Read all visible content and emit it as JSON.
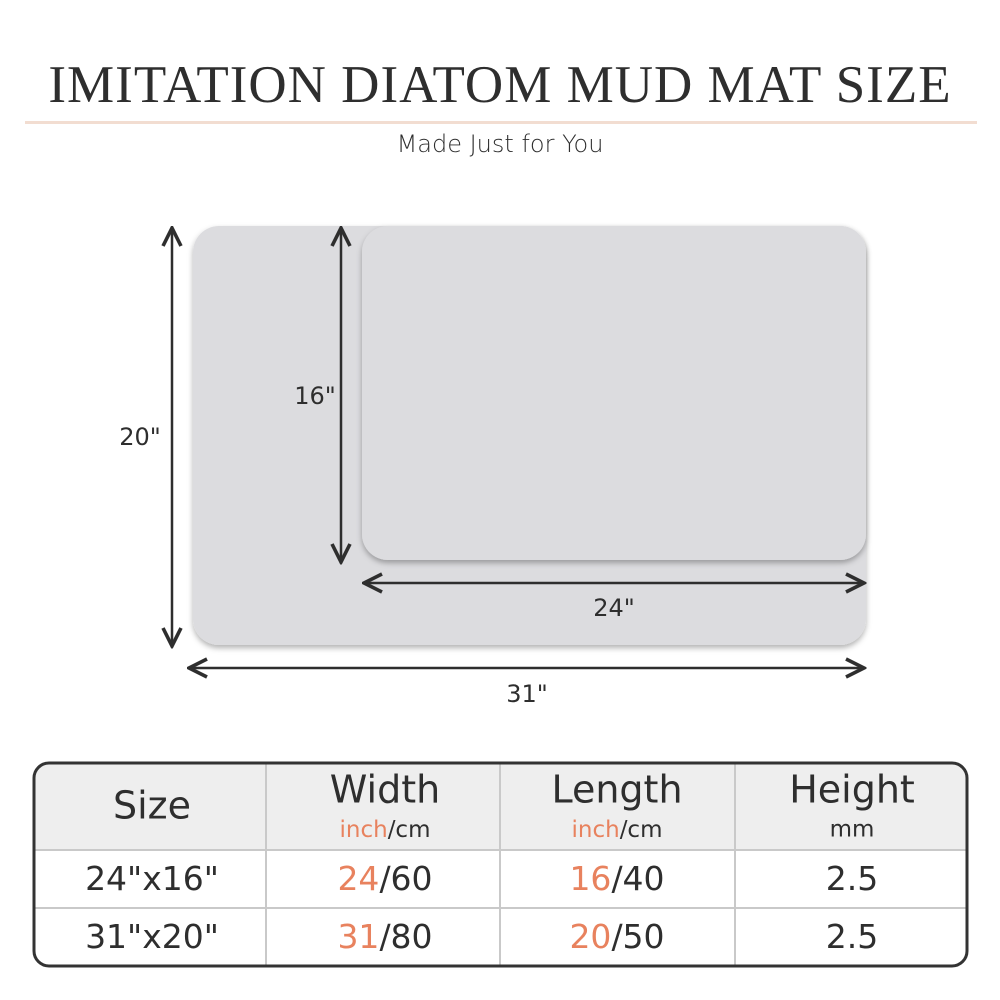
{
  "header": {
    "title": "IMITATION DIATOM MUD MAT SIZE",
    "subtitle": "Made Just for You"
  },
  "diagram": {
    "large_height": "20\"",
    "small_height": "16\"",
    "small_width": "24\"",
    "large_width": "31\""
  },
  "table": {
    "header": [
      {
        "label": "Size"
      },
      {
        "label": "Width",
        "unit_accent": "inch",
        "unit_rest": "/cm"
      },
      {
        "label": "Length",
        "unit_accent": "inch",
        "unit_rest": "/cm"
      },
      {
        "label": "Height",
        "unit_rest": "mm"
      }
    ],
    "rows": [
      [
        {
          "rest": "24\"x16\""
        },
        {
          "accent": "24",
          "rest": "/60"
        },
        {
          "accent": "16",
          "rest": "/40"
        },
        {
          "rest": "2.5"
        }
      ],
      [
        {
          "rest": "31\"x20\""
        },
        {
          "accent": "31",
          "rest": "/80"
        },
        {
          "accent": "20",
          "rest": "/50"
        },
        {
          "rest": "2.5"
        }
      ]
    ]
  }
}
